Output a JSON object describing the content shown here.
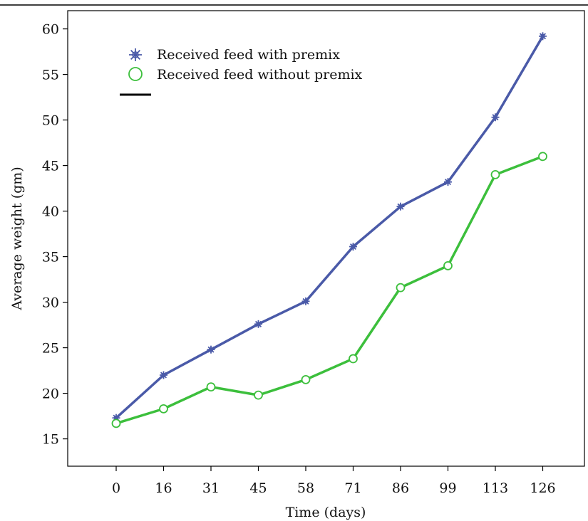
{
  "chart_data": {
    "type": "line",
    "xlabel": "Time (days)",
    "ylabel": "Average weight (gm)",
    "x": [
      "0",
      "16",
      "31",
      "45",
      "58",
      "71",
      "86",
      "99",
      "113",
      "126"
    ],
    "ylim": [
      12,
      62
    ],
    "yticks": [
      "15",
      "20",
      "25",
      "30",
      "35",
      "40",
      "45",
      "50",
      "55",
      "60"
    ],
    "grid": false,
    "legend_position": "top-left",
    "series": [
      {
        "name": "Received feed with premix",
        "color": "#4a5aa8",
        "marker": "star",
        "values": [
          17.3,
          22.0,
          24.8,
          27.6,
          30.1,
          36.1,
          40.5,
          43.2,
          50.3,
          59.2
        ]
      },
      {
        "name": "Received feed without premix",
        "color": "#3cbf3c",
        "marker": "circle",
        "values": [
          16.7,
          18.3,
          20.7,
          19.8,
          21.5,
          23.8,
          31.6,
          34.0,
          44.0,
          46.0
        ]
      }
    ]
  }
}
